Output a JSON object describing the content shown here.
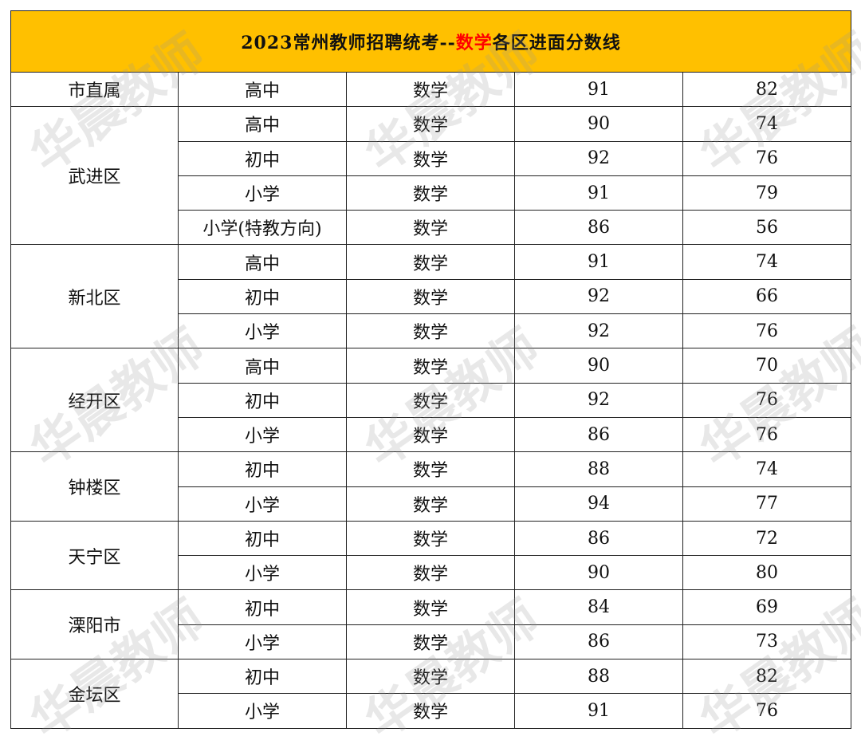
{
  "title": {
    "prefix": "2023常州教师招聘统考--",
    "highlight": "数学",
    "suffix": "各区进面分数线"
  },
  "watermark": "华晨教师",
  "colors": {
    "header_bg": "#FFC000",
    "highlight": "#FF0000"
  },
  "districts": [
    {
      "name": "市直属",
      "rows": [
        {
          "level": "高中",
          "subject": "数学",
          "score_a": "91",
          "score_b": "82"
        }
      ]
    },
    {
      "name": "武进区",
      "rows": [
        {
          "level": "高中",
          "subject": "数学",
          "score_a": "90",
          "score_b": "74"
        },
        {
          "level": "初中",
          "subject": "数学",
          "score_a": "92",
          "score_b": "76"
        },
        {
          "level": "小学",
          "subject": "数学",
          "score_a": "91",
          "score_b": "79"
        },
        {
          "level": "小学(特教方向)",
          "subject": "数学",
          "score_a": "86",
          "score_b": "56"
        }
      ]
    },
    {
      "name": "新北区",
      "rows": [
        {
          "level": "高中",
          "subject": "数学",
          "score_a": "91",
          "score_b": "74"
        },
        {
          "level": "初中",
          "subject": "数学",
          "score_a": "92",
          "score_b": "66"
        },
        {
          "level": "小学",
          "subject": "数学",
          "score_a": "92",
          "score_b": "76"
        }
      ]
    },
    {
      "name": "经开区",
      "rows": [
        {
          "level": "高中",
          "subject": "数学",
          "score_a": "90",
          "score_b": "70"
        },
        {
          "level": "初中",
          "subject": "数学",
          "score_a": "92",
          "score_b": "76"
        },
        {
          "level": "小学",
          "subject": "数学",
          "score_a": "86",
          "score_b": "76"
        }
      ]
    },
    {
      "name": "钟楼区",
      "rows": [
        {
          "level": "初中",
          "subject": "数学",
          "score_a": "88",
          "score_b": "74"
        },
        {
          "level": "小学",
          "subject": "数学",
          "score_a": "94",
          "score_b": "77"
        }
      ]
    },
    {
      "name": "天宁区",
      "rows": [
        {
          "level": "初中",
          "subject": "数学",
          "score_a": "86",
          "score_b": "72"
        },
        {
          "level": "小学",
          "subject": "数学",
          "score_a": "90",
          "score_b": "80"
        }
      ]
    },
    {
      "name": "溧阳市",
      "rows": [
        {
          "level": "初中",
          "subject": "数学",
          "score_a": "84",
          "score_b": "69"
        },
        {
          "level": "小学",
          "subject": "数学",
          "score_a": "86",
          "score_b": "73"
        }
      ]
    },
    {
      "name": "金坛区",
      "rows": [
        {
          "level": "初中",
          "subject": "数学",
          "score_a": "88",
          "score_b": "82"
        },
        {
          "level": "小学",
          "subject": "数学",
          "score_a": "91",
          "score_b": "76"
        }
      ]
    }
  ]
}
